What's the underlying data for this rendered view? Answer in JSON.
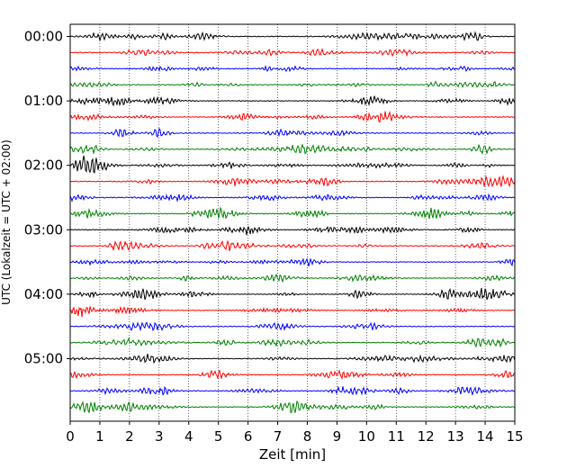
{
  "chart_data": {
    "type": "line",
    "subtype": "helicorder",
    "title": "",
    "xlabel": "Zeit  [min]",
    "ylabel": "UTC (Lokalzeit = UTC + 02:00)",
    "xlim": [
      0,
      15
    ],
    "x_ticks": [
      "0",
      "1",
      "2",
      "3",
      "4",
      "5",
      "6",
      "7",
      "8",
      "9",
      "10",
      "11",
      "12",
      "13",
      "14",
      "15"
    ],
    "y_tick_labels": [
      "00:00",
      "01:00",
      "02:00",
      "03:00",
      "04:00",
      "05:00"
    ],
    "traces_per_hour": 4,
    "trace_count": 24,
    "trace_colors": [
      "#000000",
      "#ff0000",
      "#0000ff",
      "#008000"
    ],
    "grid": "vertical-dotted"
  }
}
